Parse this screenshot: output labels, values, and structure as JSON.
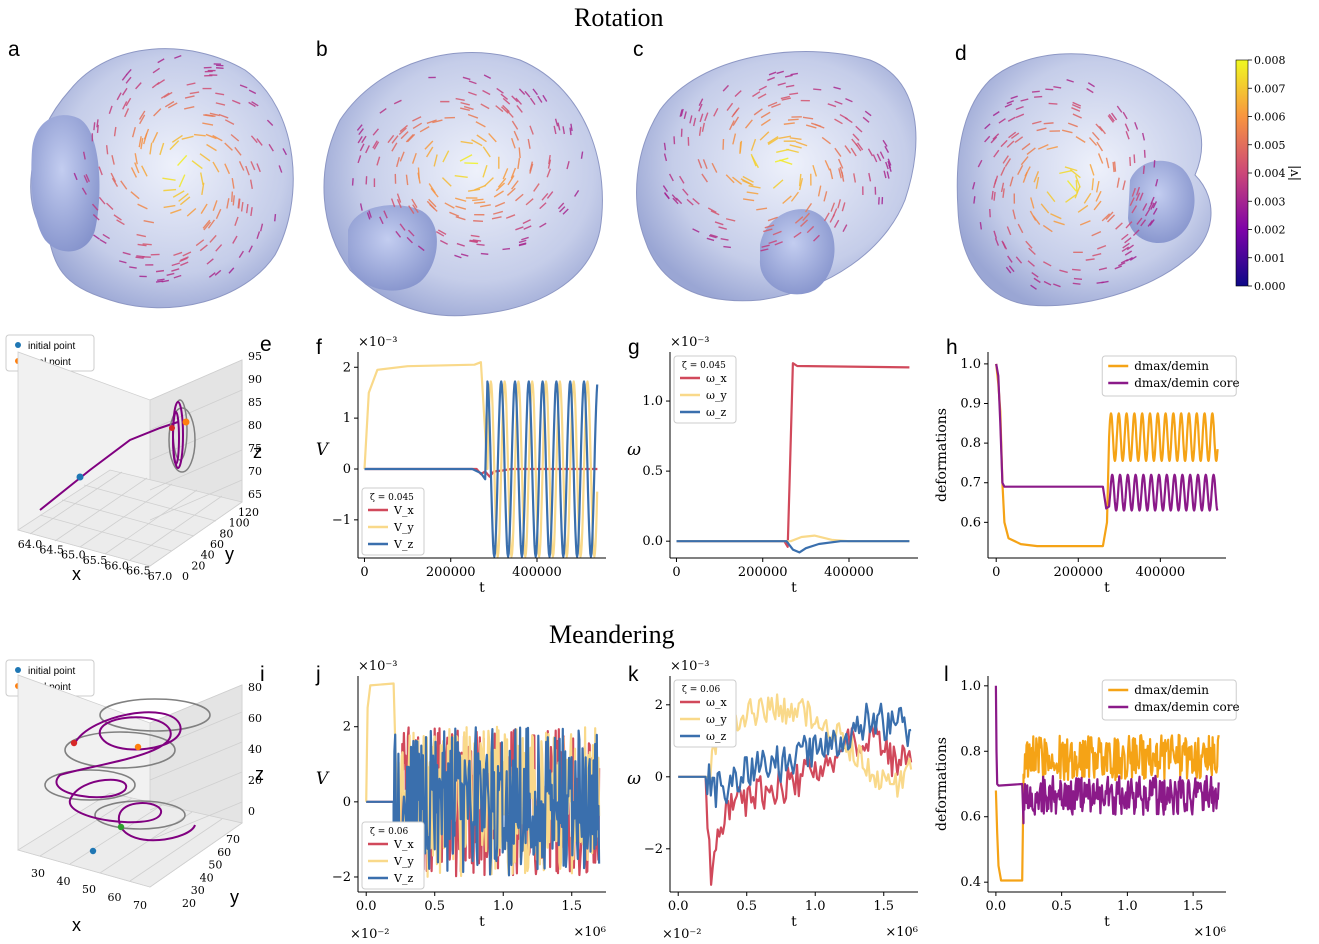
{
  "sections": {
    "rotation": "Rotation",
    "meandering": "Meandering"
  },
  "panel_letters": [
    "a",
    "b",
    "c",
    "d",
    "e",
    "f",
    "g",
    "h",
    "i",
    "j",
    "k",
    "l"
  ],
  "colorbar": {
    "label": "|v|",
    "ticks": [
      "0.000",
      "0.001",
      "0.002",
      "0.003",
      "0.004",
      "0.005",
      "0.006",
      "0.007",
      "0.008"
    ],
    "range": [
      0,
      0.008
    ],
    "colormap": "plasma"
  },
  "colors": {
    "x": "#d1495b",
    "y": "#f9d98a",
    "z": "#3a6fad",
    "orange": "#f5a316",
    "purple": "#8b1a89",
    "init": "#1f77b4",
    "final": "#ff7f0e",
    "traj": "#800080",
    "proj": "#808080"
  },
  "traj_legend": {
    "initial": "initial point",
    "final": "final point"
  },
  "panel_e": {
    "xlabel": "x",
    "ylabel": "y",
    "zlabel": "z",
    "xticks": [
      "64.0",
      "64.5",
      "65.0",
      "65.5",
      "66.0",
      "66.5",
      "67.0"
    ],
    "yticks": [
      "0",
      "20",
      "40",
      "60",
      "80",
      "100",
      "120"
    ],
    "zticks": [
      "65",
      "70",
      "75",
      "80",
      "85",
      "90",
      "95"
    ]
  },
  "panel_i": {
    "xlabel": "x",
    "ylabel": "y",
    "zlabel": "z",
    "xticks": [
      "30",
      "40",
      "50",
      "60",
      "70"
    ],
    "yticks": [
      "20",
      "30",
      "40",
      "50",
      "60",
      "70"
    ],
    "zticks": [
      "0",
      "20",
      "40",
      "60",
      "80"
    ]
  },
  "chart_data": [
    {
      "id": "f",
      "type": "line",
      "ylabel": "V",
      "xlabel": "t",
      "yexp": "×10⁻³",
      "legend_title": "ζ = 0.045",
      "legend": [
        "V_x",
        "V_y",
        "V_z"
      ],
      "xlim": [
        -15000,
        560000
      ],
      "ylim": [
        -1.75,
        2.3
      ],
      "xticks": [
        0,
        200000,
        400000
      ],
      "xticklabels": [
        "0",
        "200000",
        "400000"
      ],
      "yticks": [
        -1,
        0,
        1,
        2
      ],
      "yticklabels": [
        "−1",
        "0",
        "1",
        "2"
      ],
      "series": [
        {
          "name": "V_x",
          "color": "#d1495b",
          "x": [
            0,
            260000,
            270000,
            280000,
            290000,
            300000,
            320000,
            340000,
            380000,
            450000,
            540000
          ],
          "y": [
            0,
            0,
            -0.1,
            -0.05,
            -0.15,
            -0.05,
            -0.03,
            0,
            0,
            0,
            0
          ]
        },
        {
          "name": "V_y",
          "color": "#f9d98a",
          "x": [
            0,
            10000,
            30000,
            100000,
            255000,
            270000,
            290000,
            310000,
            540000
          ],
          "y": [
            0,
            1.5,
            1.95,
            2.02,
            2.05,
            2.1,
            -1.7,
            1.7,
            -0.3
          ],
          "osc": {
            "from": 285000,
            "amp": 1.72,
            "period": 32000
          }
        },
        {
          "name": "V_z",
          "color": "#3a6fad",
          "x": [
            0,
            250000,
            270000,
            280000,
            540000
          ],
          "y": [
            0,
            0,
            -0.08,
            -0.2,
            1.7
          ],
          "osc": {
            "from": 285000,
            "amp": 1.72,
            "period": 32000,
            "phase": 1.57
          }
        }
      ]
    },
    {
      "id": "g",
      "type": "line",
      "ylabel": "ω",
      "xlabel": "t",
      "yexp": "×10⁻³",
      "legend_title": "ζ = 0.045",
      "legend": [
        "ω_x",
        "ω_y",
        "ω_z"
      ],
      "xlim": [
        -15000,
        560000
      ],
      "ylim": [
        -0.12,
        1.35
      ],
      "xticks": [
        0,
        200000,
        400000
      ],
      "xticklabels": [
        "0",
        "200000",
        "400000"
      ],
      "yticks": [
        0,
        0.5,
        1.0
      ],
      "yticklabels": [
        "0.0",
        "0.5",
        "1.0"
      ],
      "series": [
        {
          "name": "ω_x",
          "color": "#d1495b",
          "x": [
            0,
            250000,
            258000,
            262000,
            270000,
            280000,
            540000
          ],
          "y": [
            0,
            0,
            -0.04,
            0.4,
            1.27,
            1.25,
            1.24
          ]
        },
        {
          "name": "ω_y",
          "color": "#f9d98a",
          "x": [
            0,
            265000,
            290000,
            320000,
            360000,
            400000,
            540000
          ],
          "y": [
            0,
            0,
            0.03,
            0.04,
            0.01,
            0,
            0
          ]
        },
        {
          "name": "ω_z",
          "color": "#3a6fad",
          "x": [
            0,
            255000,
            270000,
            285000,
            300000,
            330000,
            380000,
            540000
          ],
          "y": [
            0,
            0,
            -0.06,
            -0.08,
            -0.05,
            -0.02,
            0,
            0
          ]
        }
      ]
    },
    {
      "id": "h",
      "type": "line",
      "ylabel": "deformations",
      "xlabel": "t",
      "legend": [
        "dmax/demin",
        "dmax/demin core"
      ],
      "xlim": [
        -20000,
        560000
      ],
      "ylim": [
        0.51,
        1.03
      ],
      "xticks": [
        0,
        200000,
        400000
      ],
      "xticklabels": [
        "0",
        "200000",
        "400000"
      ],
      "yticks": [
        0.6,
        0.7,
        0.8,
        0.9,
        1.0
      ],
      "yticklabels": [
        "0.6",
        "0.7",
        "0.8",
        "0.9",
        "1.0"
      ],
      "series": [
        {
          "name": "dmax/demin",
          "color": "#f5a316",
          "x": [
            0,
            5000,
            10000,
            15000,
            20000,
            30000,
            60000,
            100000,
            260000,
            270000
          ],
          "y": [
            1.0,
            0.95,
            0.88,
            0.7,
            0.6,
            0.56,
            0.545,
            0.54,
            0.54,
            0.6
          ],
          "osc": {
            "from": 275000,
            "base": 0.815,
            "amp": 0.06,
            "period": 19000
          }
        },
        {
          "name": "dmax/demin core",
          "color": "#8b1a89",
          "x": [
            0,
            5000,
            10000,
            15000,
            20000,
            260000,
            268000,
            275000
          ],
          "y": [
            1.0,
            0.97,
            0.85,
            0.7,
            0.69,
            0.69,
            0.635,
            0.64
          ],
          "osc": {
            "from": 278000,
            "base": 0.675,
            "amp": 0.045,
            "period": 19000
          }
        }
      ]
    },
    {
      "id": "j",
      "type": "line",
      "ylabel": "V",
      "xlabel": "t",
      "yexp": "×10⁻³",
      "xexp": "×10⁶",
      "xexp_left": "×10⁻²",
      "legend_title": "ζ = 0.06",
      "legend": [
        "V_x",
        "V_y",
        "V_z"
      ],
      "xlim": [
        -0.06,
        1.75
      ],
      "ylim": [
        -2.4,
        3.35
      ],
      "xticks": [
        0,
        0.5,
        1.0,
        1.5
      ],
      "xticklabels": [
        "0.0",
        "0.5",
        "1.0",
        "1.5"
      ],
      "yticks": [
        -2,
        0,
        2
      ],
      "yticklabels": [
        "−2",
        "0",
        "2"
      ],
      "series": [
        {
          "name": "V_x",
          "color": "#d1495b",
          "x": [
            0,
            0.2
          ],
          "y": [
            0,
            0
          ],
          "noise": {
            "from": 0.2,
            "to": 1.7,
            "amp": 2.0,
            "seed": 3
          }
        },
        {
          "name": "V_y",
          "color": "#f9d98a",
          "x": [
            0,
            0.01,
            0.03,
            0.2,
            0.22
          ],
          "y": [
            0,
            2.5,
            3.1,
            3.15,
            0.5
          ],
          "noise": {
            "from": 0.22,
            "to": 1.7,
            "amp": 2.0,
            "seed": 7
          }
        },
        {
          "name": "V_z",
          "color": "#3a6fad",
          "x": [
            0,
            0.2
          ],
          "y": [
            0,
            0
          ],
          "noise": {
            "from": 0.2,
            "to": 1.7,
            "amp": 2.0,
            "seed": 11
          }
        }
      ]
    },
    {
      "id": "k",
      "type": "line",
      "ylabel": "ω",
      "xlabel": "t",
      "yexp": "×10⁻³",
      "xexp": "×10⁶",
      "xexp_left": "×10⁻²",
      "legend_title": "ζ = 0.06",
      "legend": [
        "ω_x",
        "ω_y",
        "ω_z"
      ],
      "xlim": [
        -0.06,
        1.75
      ],
      "ylim": [
        -3.2,
        2.8
      ],
      "xticks": [
        0,
        0.5,
        1.0,
        1.5
      ],
      "xticklabels": [
        "0.0",
        "0.5",
        "1.0",
        "1.5"
      ],
      "yticks": [
        -2,
        0,
        2
      ],
      "yticklabels": [
        "−2",
        "0",
        "2"
      ],
      "series": [
        {
          "name": "ω_x",
          "color": "#d1495b",
          "x": [
            0,
            0.2,
            0.24,
            0.3,
            0.4,
            0.6,
            0.8,
            1.0,
            1.2,
            1.4,
            1.6,
            1.7
          ],
          "y": [
            0,
            0,
            -2.8,
            -1.2,
            -0.6,
            -0.5,
            -0.2,
            0.3,
            0.8,
            1.2,
            0.3,
            0.4
          ],
          "wiggle": {
            "amp": 0.9,
            "seed": 5
          }
        },
        {
          "name": "ω_y",
          "color": "#f9d98a",
          "x": [
            0,
            0.22,
            0.3,
            0.5,
            0.8,
            1.0,
            1.2,
            1.4,
            1.6,
            1.7
          ],
          "y": [
            0,
            0,
            1.5,
            1.8,
            1.9,
            1.7,
            1.0,
            0.2,
            -0.3,
            0.2
          ],
          "wiggle": {
            "amp": 0.7,
            "seed": 9
          }
        },
        {
          "name": "ω_z",
          "color": "#3a6fad",
          "x": [
            0,
            0.2,
            0.3,
            0.5,
            0.8,
            1.0,
            1.2,
            1.4,
            1.6,
            1.7
          ],
          "y": [
            0,
            0,
            -0.4,
            0.2,
            0.4,
            0.8,
            1.2,
            1.6,
            1.5,
            1.3
          ],
          "wiggle": {
            "amp": 0.9,
            "seed": 13
          }
        }
      ]
    },
    {
      "id": "l",
      "type": "line",
      "ylabel": "deformations",
      "xlabel": "t",
      "xexp": "×10⁶",
      "legend": [
        "dmax/demin",
        "dmax/demin core"
      ],
      "xlim": [
        -0.06,
        1.75
      ],
      "ylim": [
        0.37,
        1.03
      ],
      "xticks": [
        0,
        0.5,
        1.0,
        1.5
      ],
      "xticklabels": [
        "0.0",
        "0.5",
        "1.0",
        "1.5"
      ],
      "yticks": [
        0.4,
        0.6,
        0.8,
        1.0
      ],
      "yticklabels": [
        "0.4",
        "0.6",
        "0.8",
        "1.0"
      ],
      "series": [
        {
          "name": "dmax/demin",
          "color": "#f5a316",
          "x": [
            0,
            0.01,
            0.02,
            0.04,
            0.2,
            0.21
          ],
          "y": [
            0.68,
            0.55,
            0.45,
            0.405,
            0.405,
            0.7
          ],
          "noise": {
            "from": 0.21,
            "to": 1.7,
            "amp": 0.07,
            "base": 0.78,
            "seed": 17
          }
        },
        {
          "name": "dmax/demin core",
          "color": "#8b1a89",
          "x": [
            0,
            0.005,
            0.01,
            0.02,
            0.2,
            0.21
          ],
          "y": [
            1.0,
            0.8,
            0.7,
            0.695,
            0.7,
            0.58
          ],
          "noise": {
            "from": 0.21,
            "to": 1.7,
            "amp": 0.06,
            "base": 0.665,
            "seed": 19
          }
        }
      ]
    }
  ]
}
